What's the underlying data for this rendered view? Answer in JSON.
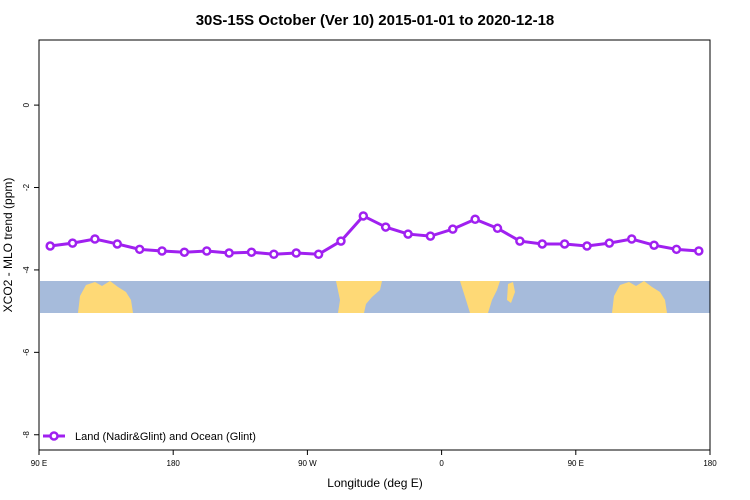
{
  "chart_data": {
    "type": "line",
    "title": "30S-15S October (Ver 10)   2015-01-01 to 2020-12-18",
    "x_label": "Longitude (deg E)",
    "y_label": "XCO2 - MLO trend (ppm)",
    "x": [
      97.5,
      112.5,
      127.5,
      142.5,
      157.5,
      172.5,
      187.5,
      202.5,
      217.5,
      232.5,
      247.5,
      262.5,
      277.5,
      292.5,
      307.5,
      322.5,
      337.5,
      352.5,
      367.5,
      382.5,
      397.5,
      412.5,
      427.5,
      442.5,
      457.5,
      472.5,
      487.5,
      502.5,
      517.5,
      532.5
    ],
    "series": [
      {
        "name": "Land (Nadir&Glint) and Ocean (Glint)",
        "color": "#a020f0",
        "values": [
          -3.42,
          -3.35,
          -3.25,
          -3.37,
          -3.5,
          -3.54,
          -3.57,
          -3.54,
          -3.59,
          -3.57,
          -3.62,
          -3.59,
          -3.62,
          -3.3,
          -2.69,
          -2.96,
          -3.13,
          -3.18,
          -3.01,
          -2.77,
          -2.99,
          -3.3,
          -3.37,
          -3.37,
          -3.42,
          -3.35,
          -3.25,
          -3.4,
          -3.5,
          -3.54
        ]
      }
    ],
    "xlim": [
      90,
      540
    ],
    "ylim": [
      -8.37,
      1.58
    ],
    "xticks": [
      {
        "value": 90,
        "label": "90 E"
      },
      {
        "value": 180,
        "label": "180"
      },
      {
        "value": 270,
        "label": "90 W"
      },
      {
        "value": 360,
        "label": "0"
      },
      {
        "value": 450,
        "label": "90 E"
      },
      {
        "value": 540,
        "label": "180"
      }
    ],
    "yticks": [
      0,
      -2,
      -4,
      -6,
      -8
    ],
    "legend": "bottom-left"
  }
}
